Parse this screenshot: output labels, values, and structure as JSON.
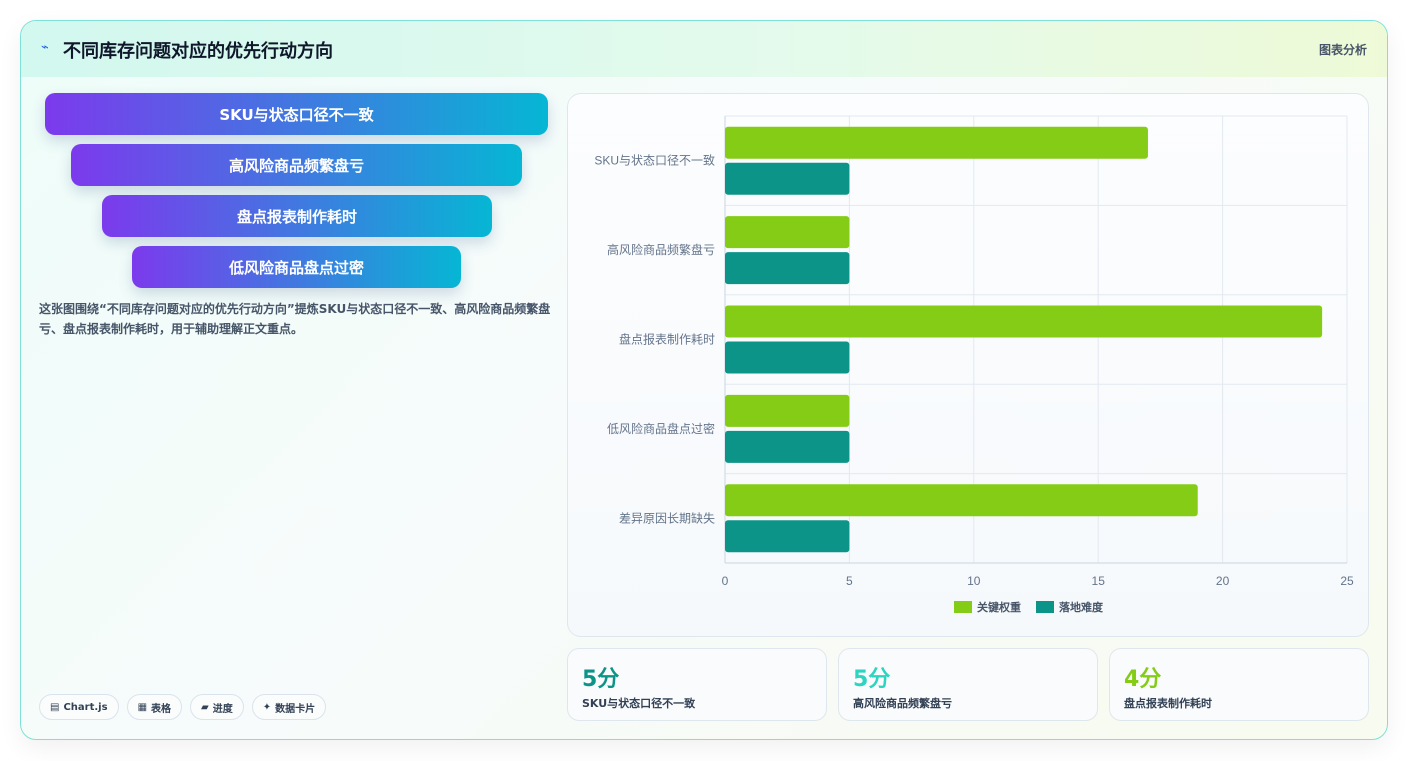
{
  "header": {
    "title": "不同库存问题对应的优先行动方向",
    "tag": "图表分析",
    "icon": "bolt-icon"
  },
  "funnel": {
    "steps": [
      "SKU与状态口径不一致",
      "高风险商品频繁盘亏",
      "盘点报表制作耗时",
      "低风险商品盘点过密"
    ]
  },
  "description": "这张图围绕“不同库存问题对应的优先行动方向”提炼SKU与状态口径不一致、高风险商品频繁盘亏、盘点报表制作耗时，用于辅助理解正文重点。",
  "chips": [
    {
      "icon": "chart-icon",
      "label": "Chart.js"
    },
    {
      "icon": "table-icon",
      "label": "表格"
    },
    {
      "icon": "progress-icon",
      "label": "进度"
    },
    {
      "icon": "card-icon",
      "label": "数据卡片"
    }
  ],
  "stats": [
    {
      "value": "5分",
      "label": "SKU与状态口径不一致",
      "color": "#0d9488"
    },
    {
      "value": "5分",
      "label": "高风险商品频繁盘亏",
      "color": "#2dd4bf"
    },
    {
      "value": "4分",
      "label": "盘点报表制作耗时",
      "color": "#84cc16"
    }
  ],
  "chart_data": {
    "type": "bar",
    "orientation": "horizontal",
    "categories": [
      "SKU与状态口径不一致",
      "高风险商品频繁盘亏",
      "盘点报表制作耗时",
      "低风险商品盘点过密",
      "差异原因长期缺失"
    ],
    "series": [
      {
        "name": "关键权重",
        "values": [
          17,
          5,
          24,
          5,
          19
        ],
        "color": "#84cc16"
      },
      {
        "name": "落地难度",
        "values": [
          5,
          5,
          5,
          5,
          5
        ],
        "color": "#0d9488"
      }
    ],
    "xlim": [
      0,
      25
    ],
    "xticks": [
      0,
      5,
      10,
      15,
      20,
      25
    ],
    "grid": true,
    "legend": "bottom"
  }
}
